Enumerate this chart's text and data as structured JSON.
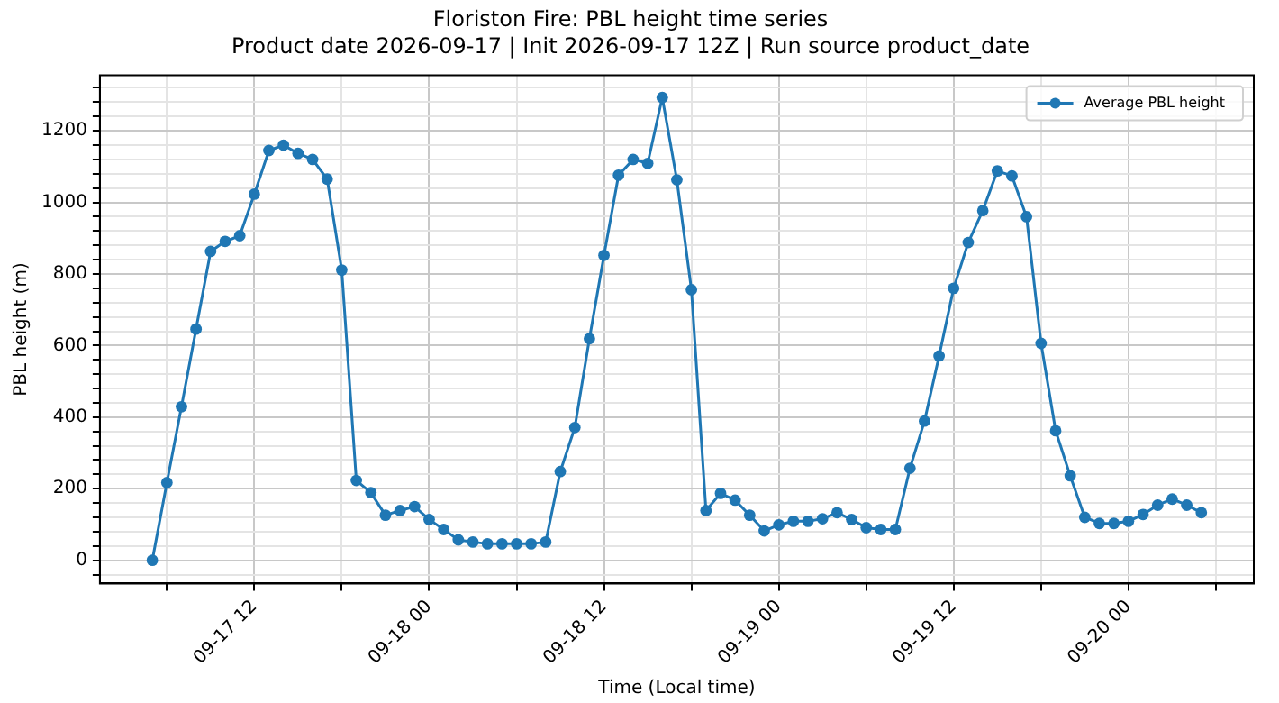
{
  "chart_data": {
    "type": "line",
    "title": "Floriston Fire: PBL height time series",
    "subtitle": "Product date 2026-09-17 | Init 2026-09-17 12Z | Run source product_date",
    "xlabel": "Time (Local time)",
    "ylabel": "PBL height (m)",
    "x": [
      "2026-09-17T05:00",
      "2026-09-17T06:00",
      "2026-09-17T07:00",
      "2026-09-17T08:00",
      "2026-09-17T09:00",
      "2026-09-17T10:00",
      "2026-09-17T11:00",
      "2026-09-17T12:00",
      "2026-09-17T13:00",
      "2026-09-17T14:00",
      "2026-09-17T15:00",
      "2026-09-17T16:00",
      "2026-09-17T17:00",
      "2026-09-17T18:00",
      "2026-09-17T19:00",
      "2026-09-17T20:00",
      "2026-09-17T21:00",
      "2026-09-17T22:00",
      "2026-09-17T23:00",
      "2026-09-18T00:00",
      "2026-09-18T01:00",
      "2026-09-18T02:00",
      "2026-09-18T03:00",
      "2026-09-18T04:00",
      "2026-09-18T05:00",
      "2026-09-18T06:00",
      "2026-09-18T07:00",
      "2026-09-18T08:00",
      "2026-09-18T09:00",
      "2026-09-18T10:00",
      "2026-09-18T11:00",
      "2026-09-18T12:00",
      "2026-09-18T13:00",
      "2026-09-18T14:00",
      "2026-09-18T15:00",
      "2026-09-18T16:00",
      "2026-09-18T17:00",
      "2026-09-18T18:00",
      "2026-09-18T19:00",
      "2026-09-18T20:00",
      "2026-09-18T21:00",
      "2026-09-18T22:00",
      "2026-09-18T23:00",
      "2026-09-19T00:00",
      "2026-09-19T01:00",
      "2026-09-19T02:00",
      "2026-09-19T03:00",
      "2026-09-19T04:00",
      "2026-09-19T05:00",
      "2026-09-19T06:00",
      "2026-09-19T07:00",
      "2026-09-19T08:00",
      "2026-09-19T09:00",
      "2026-09-19T10:00",
      "2026-09-19T11:00",
      "2026-09-19T12:00",
      "2026-09-19T13:00",
      "2026-09-19T14:00",
      "2026-09-19T15:00",
      "2026-09-19T16:00",
      "2026-09-19T17:00",
      "2026-09-19T18:00",
      "2026-09-19T19:00",
      "2026-09-19T20:00",
      "2026-09-19T21:00",
      "2026-09-19T22:00",
      "2026-09-19T23:00",
      "2026-09-20T00:00",
      "2026-09-20T01:00",
      "2026-09-20T02:00",
      "2026-09-20T03:00",
      "2026-09-20T04:00",
      "2026-09-20T05:00"
    ],
    "series": [
      {
        "name": "Average PBL height",
        "color": "#1f77b4",
        "values": [
          0,
          217,
          429,
          646,
          863,
          891,
          907,
          1023,
          1145,
          1160,
          1137,
          1120,
          1065,
          811,
          223,
          189,
          126,
          139,
          150,
          114,
          86,
          57,
          51,
          46,
          46,
          46,
          46,
          51,
          248,
          371,
          619,
          852,
          1076,
          1120,
          1109,
          1293,
          1063,
          756,
          139,
          187,
          168,
          126,
          82,
          99,
          109,
          109,
          116,
          133,
          114,
          91,
          86,
          86,
          257,
          389,
          571,
          760,
          888,
          977,
          1088,
          1074,
          960,
          606,
          362,
          236,
          120,
          103,
          103,
          109,
          128,
          154,
          171,
          154,
          133
        ]
      }
    ],
    "xlim": [
      "2026-09-17T01:24",
      "2026-09-20T08:36"
    ],
    "xticks": [
      {
        "value": "2026-09-17T06:00",
        "label": null
      },
      {
        "value": "2026-09-17T12:00",
        "label": "09-17 12"
      },
      {
        "value": "2026-09-17T18:00",
        "label": null
      },
      {
        "value": "2026-09-18T00:00",
        "label": "09-18 00"
      },
      {
        "value": "2026-09-18T06:00",
        "label": null
      },
      {
        "value": "2026-09-18T12:00",
        "label": "09-18 12"
      },
      {
        "value": "2026-09-18T18:00",
        "label": null
      },
      {
        "value": "2026-09-19T00:00",
        "label": "09-19 00"
      },
      {
        "value": "2026-09-19T06:00",
        "label": null
      },
      {
        "value": "2026-09-19T12:00",
        "label": "09-19 12"
      },
      {
        "value": "2026-09-19T18:00",
        "label": null
      },
      {
        "value": "2026-09-20T00:00",
        "label": "09-20 00"
      },
      {
        "value": "2026-09-20T06:00",
        "label": null
      }
    ],
    "ylim": [
      -65,
      1355
    ],
    "yticks": [
      {
        "value": -40,
        "label": null
      },
      0,
      {
        "value": 40,
        "label": null
      },
      {
        "value": 80,
        "label": null
      },
      {
        "value": 120,
        "label": null
      },
      {
        "value": 160,
        "label": null
      },
      200,
      {
        "value": 240,
        "label": null
      },
      {
        "value": 280,
        "label": null
      },
      {
        "value": 320,
        "label": null
      },
      {
        "value": 360,
        "label": null
      },
      400,
      {
        "value": 440,
        "label": null
      },
      {
        "value": 480,
        "label": null
      },
      {
        "value": 520,
        "label": null
      },
      {
        "value": 560,
        "label": null
      },
      600,
      {
        "value": 640,
        "label": null
      },
      {
        "value": 680,
        "label": null
      },
      {
        "value": 720,
        "label": null
      },
      {
        "value": 760,
        "label": null
      },
      800,
      {
        "value": 840,
        "label": null
      },
      {
        "value": 880,
        "label": null
      },
      {
        "value": 920,
        "label": null
      },
      {
        "value": 960,
        "label": null
      },
      1000,
      {
        "value": 1040,
        "label": null
      },
      {
        "value": 1080,
        "label": null
      },
      {
        "value": 1120,
        "label": null
      },
      {
        "value": 1160,
        "label": null
      },
      1200,
      {
        "value": 1240,
        "label": null
      },
      {
        "value": 1280,
        "label": null
      },
      {
        "value": 1320,
        "label": null
      }
    ],
    "grid": true,
    "legend": "top right",
    "marker": "circle",
    "line_style": "solid"
  }
}
